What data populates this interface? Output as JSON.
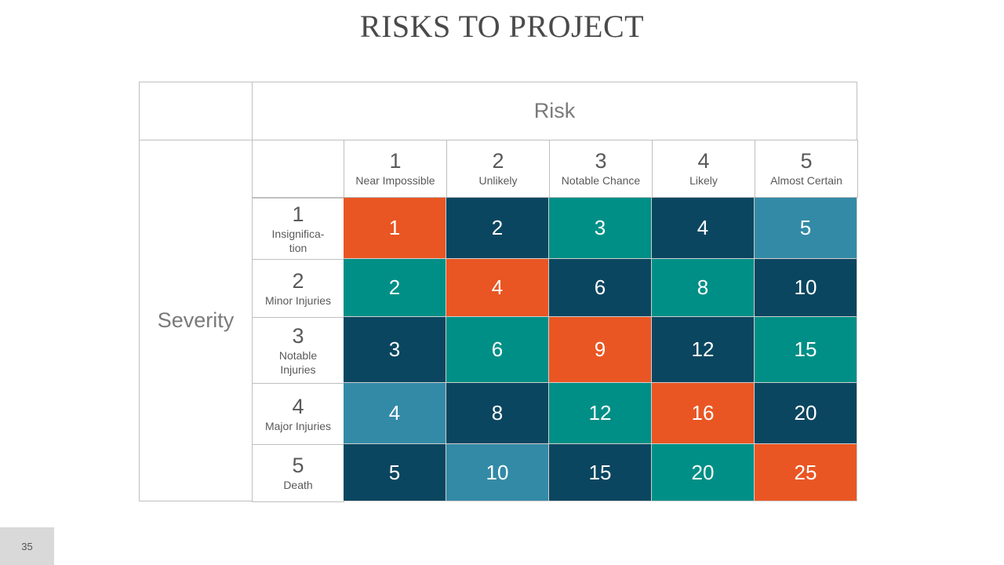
{
  "title": "RISKS TO PROJECT",
  "risk_label": "Risk",
  "severity_label": "Severity",
  "risk_levels": [
    {
      "num": "1",
      "name": "Near Impossible"
    },
    {
      "num": "2",
      "name": "Unlikely"
    },
    {
      "num": "3",
      "name": "Notable Chance"
    },
    {
      "num": "4",
      "name": "Likely"
    },
    {
      "num": "5",
      "name": "Almost Certain"
    }
  ],
  "severity_levels": [
    {
      "num": "1",
      "name": "Insignifica-\ntion"
    },
    {
      "num": "2",
      "name": "Minor Injuries"
    },
    {
      "num": "3",
      "name": "Notable\nInjuries"
    },
    {
      "num": "4",
      "name": "Major Injuries"
    },
    {
      "num": "5",
      "name": "Death"
    }
  ],
  "colors": {
    "orange": "#e95623",
    "navy": "#0b4660",
    "teal": "#008f86",
    "blue": "#338aa6"
  },
  "matrix": [
    [
      {
        "v": "1",
        "c": "orange"
      },
      {
        "v": "2",
        "c": "navy"
      },
      {
        "v": "3",
        "c": "teal"
      },
      {
        "v": "4",
        "c": "navy"
      },
      {
        "v": "5",
        "c": "blue"
      }
    ],
    [
      {
        "v": "2",
        "c": "teal"
      },
      {
        "v": "4",
        "c": "orange"
      },
      {
        "v": "6",
        "c": "navy"
      },
      {
        "v": "8",
        "c": "teal"
      },
      {
        "v": "10",
        "c": "navy"
      }
    ],
    [
      {
        "v": "3",
        "c": "navy"
      },
      {
        "v": "6",
        "c": "teal"
      },
      {
        "v": "9",
        "c": "orange"
      },
      {
        "v": "12",
        "c": "navy"
      },
      {
        "v": "15",
        "c": "teal"
      }
    ],
    [
      {
        "v": "4",
        "c": "blue"
      },
      {
        "v": "8",
        "c": "navy"
      },
      {
        "v": "12",
        "c": "teal"
      },
      {
        "v": "16",
        "c": "orange"
      },
      {
        "v": "20",
        "c": "navy"
      }
    ],
    [
      {
        "v": "5",
        "c": "navy"
      },
      {
        "v": "10",
        "c": "blue"
      },
      {
        "v": "15",
        "c": "navy"
      },
      {
        "v": "20",
        "c": "teal"
      },
      {
        "v": "25",
        "c": "orange"
      }
    ]
  ],
  "page_number": "35"
}
